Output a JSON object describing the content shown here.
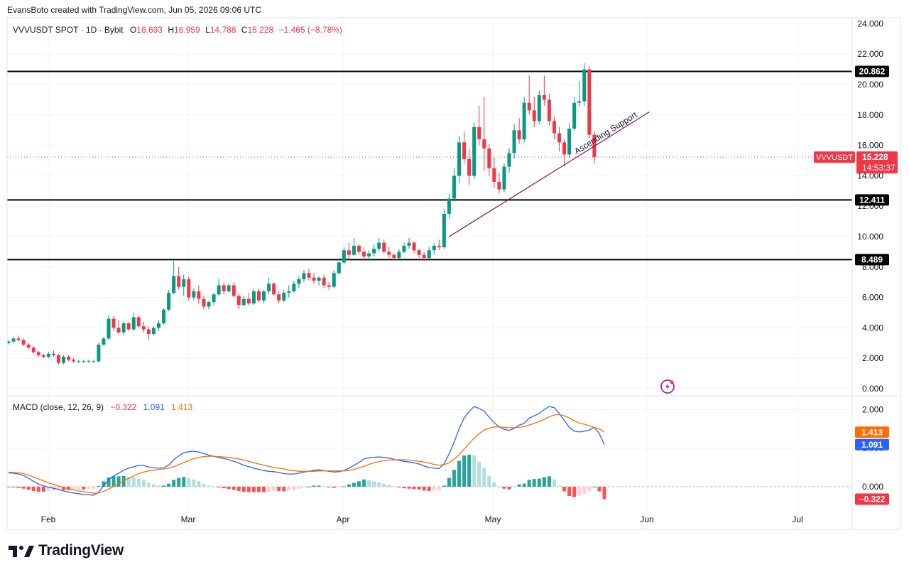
{
  "header": {
    "created_by": "EvansBoto created with TradingView.com, Jun 05, 2026 09:06 UTC"
  },
  "legend": {
    "symbol": "VVVUSDT SPOT · 1D · Bybit",
    "o_label": "O",
    "o": "16.693",
    "h_label": "H",
    "h": "16.959",
    "l_label": "L",
    "l": "14.788",
    "c_label": "C",
    "c": "15.228",
    "change": "−1.465 (−8.78%)"
  },
  "colors": {
    "up": "#089981",
    "down": "#f23645",
    "macd": "#2962ff",
    "signal": "#ff6d00",
    "text": "#131722",
    "grid": "#f0f3fa"
  },
  "levels": [
    {
      "label": "20.862",
      "value": 20.862
    },
    {
      "label": "12.411",
      "value": 12.411
    },
    {
      "label": "8.489",
      "value": 8.489
    }
  ],
  "price_tag": {
    "symbol": "VVVUSDT",
    "price": "15.228",
    "countdown": "14:53:37"
  },
  "annotation": {
    "text": "Ascending Support"
  },
  "macd_legend": {
    "title": "MACD (close, 12, 26, 9)",
    "hist": "−0.322",
    "macd": "1.091",
    "signal": "1.413"
  },
  "macd_tags": {
    "signal": "1.413",
    "macd": "1.091",
    "hist": "−0.322"
  },
  "brand": {
    "name": "TradingView"
  },
  "chart_data": {
    "type": "candlestick",
    "price_axis": {
      "ticks": [
        "24.000",
        "22.000",
        "20.000",
        "18.000",
        "16.000",
        "14.000",
        "12.000",
        "10.000",
        "8.000",
        "6.000",
        "4.000",
        "2.000",
        "0.000"
      ],
      "range": [
        0,
        24
      ]
    },
    "time_axis": {
      "ticks": [
        "Feb",
        "Mar",
        "Apr",
        "May",
        "Jun",
        "Jul"
      ]
    },
    "candles": [
      [
        3.0,
        3.2,
        2.9,
        3.1
      ],
      [
        3.1,
        3.4,
        3.0,
        3.3
      ],
      [
        3.3,
        3.5,
        3.1,
        3.2
      ],
      [
        3.2,
        3.3,
        2.8,
        2.9
      ],
      [
        2.9,
        3.0,
        2.6,
        2.7
      ],
      [
        2.7,
        2.8,
        2.3,
        2.4
      ],
      [
        2.4,
        2.5,
        2.1,
        2.2
      ],
      [
        2.2,
        2.3,
        2.0,
        2.1
      ],
      [
        2.1,
        2.4,
        2.0,
        2.3
      ],
      [
        2.3,
        2.5,
        2.1,
        2.2
      ],
      [
        2.2,
        2.3,
        1.6,
        1.7
      ],
      [
        1.7,
        2.2,
        1.6,
        2.1
      ],
      [
        2.1,
        2.2,
        1.8,
        1.9
      ],
      [
        1.9,
        2.0,
        1.7,
        1.8
      ],
      [
        1.8,
        1.9,
        1.7,
        1.8
      ],
      [
        1.8,
        1.9,
        1.7,
        1.8
      ],
      [
        1.8,
        1.9,
        1.7,
        1.8
      ],
      [
        1.8,
        1.9,
        1.7,
        1.8
      ],
      [
        1.8,
        3.0,
        1.7,
        2.9
      ],
      [
        2.9,
        3.4,
        2.8,
        3.3
      ],
      [
        3.3,
        4.8,
        3.2,
        4.6
      ],
      [
        4.6,
        4.8,
        3.8,
        4.0
      ],
      [
        4.0,
        4.5,
        3.6,
        3.7
      ],
      [
        3.7,
        4.4,
        3.5,
        4.3
      ],
      [
        4.3,
        4.4,
        3.8,
        3.9
      ],
      [
        3.9,
        5.0,
        3.8,
        4.7
      ],
      [
        4.7,
        4.8,
        4.0,
        4.1
      ],
      [
        4.1,
        4.4,
        3.7,
        3.9
      ],
      [
        3.9,
        4.1,
        3.2,
        3.6
      ],
      [
        3.6,
        4.1,
        3.5,
        4.0
      ],
      [
        4.0,
        4.5,
        3.8,
        4.3
      ],
      [
        4.3,
        5.3,
        4.2,
        5.2
      ],
      [
        5.2,
        6.5,
        5.1,
        6.3
      ],
      [
        6.3,
        8.4,
        6.2,
        7.4
      ],
      [
        7.4,
        8.0,
        6.5,
        6.7
      ],
      [
        6.7,
        7.5,
        6.1,
        7.2
      ],
      [
        7.2,
        7.4,
        5.8,
        6.0
      ],
      [
        6.0,
        6.6,
        5.8,
        6.4
      ],
      [
        6.4,
        6.8,
        5.6,
        5.9
      ],
      [
        5.9,
        6.1,
        5.2,
        5.4
      ],
      [
        5.4,
        5.8,
        5.2,
        5.7
      ],
      [
        5.7,
        6.3,
        5.5,
        6.2
      ],
      [
        6.2,
        7.2,
        6.1,
        6.8
      ],
      [
        6.8,
        7.0,
        6.2,
        6.4
      ],
      [
        6.4,
        6.9,
        6.3,
        6.8
      ],
      [
        6.8,
        7.0,
        6.0,
        6.1
      ],
      [
        6.1,
        6.3,
        5.2,
        5.5
      ],
      [
        5.5,
        6.1,
        5.4,
        5.9
      ],
      [
        5.9,
        6.3,
        5.5,
        5.6
      ],
      [
        5.6,
        6.6,
        5.5,
        6.4
      ],
      [
        6.4,
        6.6,
        5.7,
        5.8
      ],
      [
        5.8,
        6.5,
        5.6,
        6.4
      ],
      [
        6.4,
        7.3,
        6.2,
        6.9
      ],
      [
        6.9,
        7.0,
        6.1,
        6.2
      ],
      [
        6.2,
        6.4,
        5.6,
        5.8
      ],
      [
        5.8,
        6.5,
        5.7,
        6.3
      ],
      [
        6.3,
        6.8,
        6.0,
        6.4
      ],
      [
        6.4,
        7.1,
        6.3,
        6.9
      ],
      [
        6.9,
        7.4,
        6.6,
        7.2
      ],
      [
        7.2,
        7.8,
        7.0,
        7.6
      ],
      [
        7.6,
        7.9,
        7.1,
        7.3
      ],
      [
        7.3,
        7.6,
        6.9,
        7.1
      ],
      [
        7.1,
        7.4,
        6.8,
        7.3
      ],
      [
        7.3,
        7.5,
        6.6,
        6.8
      ],
      [
        6.8,
        7.0,
        6.5,
        6.7
      ],
      [
        6.7,
        7.8,
        6.6,
        7.6
      ],
      [
        7.6,
        8.4,
        7.5,
        8.3
      ],
      [
        8.3,
        9.3,
        8.2,
        9.1
      ],
      [
        9.1,
        9.6,
        8.5,
        8.8
      ],
      [
        8.8,
        9.9,
        8.7,
        9.4
      ],
      [
        9.4,
        9.5,
        8.8,
        9.0
      ],
      [
        9.0,
        9.3,
        8.4,
        8.7
      ],
      [
        8.7,
        9.1,
        8.4,
        8.9
      ],
      [
        8.9,
        9.5,
        8.7,
        9.2
      ],
      [
        9.2,
        9.9,
        9.0,
        9.6
      ],
      [
        9.6,
        9.8,
        8.9,
        9.0
      ],
      [
        9.0,
        9.3,
        8.6,
        8.8
      ],
      [
        8.8,
        8.9,
        8.4,
        8.6
      ],
      [
        8.6,
        9.2,
        8.5,
        9.0
      ],
      [
        9.0,
        9.6,
        8.9,
        9.4
      ],
      [
        9.4,
        9.9,
        9.2,
        9.6
      ],
      [
        9.6,
        9.7,
        8.9,
        9.1
      ],
      [
        9.1,
        9.2,
        8.6,
        8.8
      ],
      [
        8.8,
        9.0,
        8.4,
        8.6
      ],
      [
        8.6,
        9.3,
        8.5,
        9.1
      ],
      [
        9.1,
        9.6,
        8.8,
        9.4
      ],
      [
        9.4,
        9.8,
        9.1,
        9.3
      ],
      [
        9.3,
        11.8,
        9.2,
        11.5
      ],
      [
        11.5,
        12.8,
        11.2,
        12.5
      ],
      [
        12.5,
        14.5,
        12.3,
        14.0
      ],
      [
        14.0,
        16.6,
        13.5,
        16.2
      ],
      [
        16.2,
        16.9,
        14.8,
        15.1
      ],
      [
        15.1,
        15.8,
        13.4,
        14.0
      ],
      [
        14.0,
        17.5,
        13.8,
        17.2
      ],
      [
        17.2,
        18.6,
        16.0,
        16.4
      ],
      [
        16.4,
        19.2,
        14.3,
        15.8
      ],
      [
        15.8,
        16.1,
        14.0,
        14.5
      ],
      [
        14.5,
        15.2,
        13.2,
        13.6
      ],
      [
        13.6,
        14.2,
        12.8,
        13.1
      ],
      [
        13.1,
        14.8,
        12.9,
        14.6
      ],
      [
        14.6,
        15.8,
        14.2,
        15.5
      ],
      [
        15.5,
        17.4,
        15.1,
        17.0
      ],
      [
        17.0,
        17.8,
        16.1,
        16.4
      ],
      [
        16.4,
        19.2,
        16.2,
        18.8
      ],
      [
        18.8,
        20.6,
        18.0,
        18.3
      ],
      [
        18.3,
        19.2,
        17.2,
        17.6
      ],
      [
        17.6,
        19.6,
        17.4,
        19.3
      ],
      [
        19.3,
        20.6,
        18.6,
        19.0
      ],
      [
        19.0,
        19.4,
        17.3,
        17.6
      ],
      [
        17.6,
        17.9,
        16.4,
        16.8
      ],
      [
        16.8,
        17.2,
        15.6,
        16.2
      ],
      [
        16.2,
        16.4,
        14.6,
        15.4
      ],
      [
        15.4,
        17.5,
        15.2,
        17.1
      ],
      [
        17.1,
        19.2,
        16.9,
        18.8
      ],
      [
        18.8,
        20.2,
        18.5,
        18.9
      ],
      [
        18.9,
        21.4,
        18.6,
        21.0
      ],
      [
        21.0,
        21.2,
        16.5,
        16.7
      ],
      [
        16.693,
        16.959,
        14.788,
        15.228
      ]
    ],
    "macd": {
      "series": [
        {
          "name": "MACD",
          "values": [
            0.36,
            0.35,
            0.33,
            0.29,
            0.22,
            0.14,
            0.07,
            0.02,
            -0.01,
            -0.04,
            -0.07,
            -0.11,
            -0.14,
            -0.16,
            -0.18,
            -0.2,
            -0.21,
            -0.22,
            -0.14,
            0.02,
            0.18,
            0.28,
            0.35,
            0.43,
            0.48,
            0.52,
            0.55,
            0.55,
            0.51,
            0.49,
            0.48,
            0.49,
            0.56,
            0.7,
            0.8,
            0.88,
            0.91,
            0.92,
            0.9,
            0.86,
            0.82,
            0.79,
            0.76,
            0.73,
            0.7,
            0.66,
            0.61,
            0.56,
            0.52,
            0.48,
            0.45,
            0.42,
            0.4,
            0.39,
            0.37,
            0.34,
            0.33,
            0.33,
            0.35,
            0.38,
            0.4,
            0.43,
            0.44,
            0.42,
            0.4,
            0.38,
            0.39,
            0.42,
            0.48,
            0.55,
            0.63,
            0.72,
            0.75,
            0.76,
            0.77,
            0.76,
            0.74,
            0.71,
            0.68,
            0.66,
            0.64,
            0.62,
            0.59,
            0.54,
            0.5,
            0.48,
            0.47,
            0.6,
            0.85,
            1.15,
            1.5,
            1.78,
            1.95,
            2.08,
            2.03,
            1.96,
            1.8,
            1.66,
            1.55,
            1.49,
            1.46,
            1.51,
            1.6,
            1.64,
            1.78,
            1.84,
            1.9,
            2.0,
            2.08,
            2.05,
            1.9,
            1.72,
            1.54,
            1.44,
            1.42,
            1.44,
            1.47,
            1.54,
            1.38,
            1.091
          ]
        },
        {
          "name": "Signal",
          "values": [
            0.38,
            0.37,
            0.36,
            0.34,
            0.3,
            0.25,
            0.2,
            0.15,
            0.1,
            0.06,
            0.02,
            -0.02,
            -0.05,
            -0.08,
            -0.11,
            -0.13,
            -0.15,
            -0.17,
            -0.16,
            -0.12,
            -0.06,
            0.01,
            0.08,
            0.15,
            0.22,
            0.28,
            0.34,
            0.38,
            0.41,
            0.43,
            0.45,
            0.46,
            0.48,
            0.52,
            0.57,
            0.63,
            0.68,
            0.73,
            0.76,
            0.78,
            0.79,
            0.79,
            0.78,
            0.77,
            0.76,
            0.74,
            0.72,
            0.69,
            0.66,
            0.62,
            0.59,
            0.56,
            0.53,
            0.5,
            0.48,
            0.46,
            0.43,
            0.42,
            0.4,
            0.4,
            0.4,
            0.4,
            0.41,
            0.41,
            0.41,
            0.41,
            0.41,
            0.41,
            0.42,
            0.45,
            0.49,
            0.53,
            0.58,
            0.62,
            0.65,
            0.68,
            0.69,
            0.7,
            0.7,
            0.7,
            0.69,
            0.68,
            0.66,
            0.64,
            0.61,
            0.58,
            0.56,
            0.57,
            0.62,
            0.71,
            0.83,
            0.97,
            1.12,
            1.26,
            1.38,
            1.47,
            1.52,
            1.55,
            1.55,
            1.54,
            1.53,
            1.53,
            1.54,
            1.56,
            1.6,
            1.64,
            1.69,
            1.75,
            1.81,
            1.86,
            1.87,
            1.84,
            1.78,
            1.71,
            1.65,
            1.62,
            1.58,
            1.54,
            1.5,
            1.413
          ]
        }
      ],
      "histogram": [
        -0.02,
        -0.02,
        -0.03,
        -0.05,
        -0.08,
        -0.11,
        -0.13,
        -0.13,
        -0.11,
        -0.1,
        -0.09,
        -0.09,
        -0.09,
        -0.08,
        -0.07,
        -0.07,
        -0.06,
        -0.05,
        0.02,
        0.14,
        0.24,
        0.27,
        0.27,
        0.28,
        0.26,
        0.24,
        0.21,
        0.17,
        0.1,
        0.06,
        0.03,
        0.03,
        0.08,
        0.18,
        0.23,
        0.25,
        0.23,
        0.19,
        0.14,
        0.08,
        0.03,
        0.0,
        -0.02,
        -0.04,
        -0.06,
        -0.08,
        -0.11,
        -0.13,
        -0.14,
        -0.14,
        -0.14,
        -0.14,
        -0.13,
        -0.11,
        -0.11,
        -0.12,
        -0.1,
        -0.09,
        -0.05,
        -0.02,
        0.0,
        0.03,
        0.03,
        0.01,
        -0.01,
        -0.03,
        -0.02,
        0.01,
        0.06,
        0.1,
        0.14,
        0.19,
        0.17,
        0.14,
        0.12,
        0.08,
        0.05,
        0.01,
        -0.02,
        -0.04,
        -0.05,
        -0.06,
        -0.07,
        -0.1,
        -0.11,
        -0.1,
        -0.09,
        0.03,
        0.23,
        0.44,
        0.67,
        0.81,
        0.83,
        0.82,
        0.65,
        0.49,
        0.28,
        0.11,
        0.0,
        -0.05,
        -0.07,
        -0.02,
        0.06,
        0.08,
        0.18,
        0.2,
        0.21,
        0.25,
        0.27,
        0.19,
        0.03,
        -0.12,
        -0.24,
        -0.27,
        -0.23,
        -0.18,
        -0.11,
        0.0,
        -0.12,
        -0.322
      ]
    },
    "ascending_support": {
      "from_index": 88,
      "from_price": 10.0,
      "to_index": 128,
      "to_price": 18.2
    }
  }
}
